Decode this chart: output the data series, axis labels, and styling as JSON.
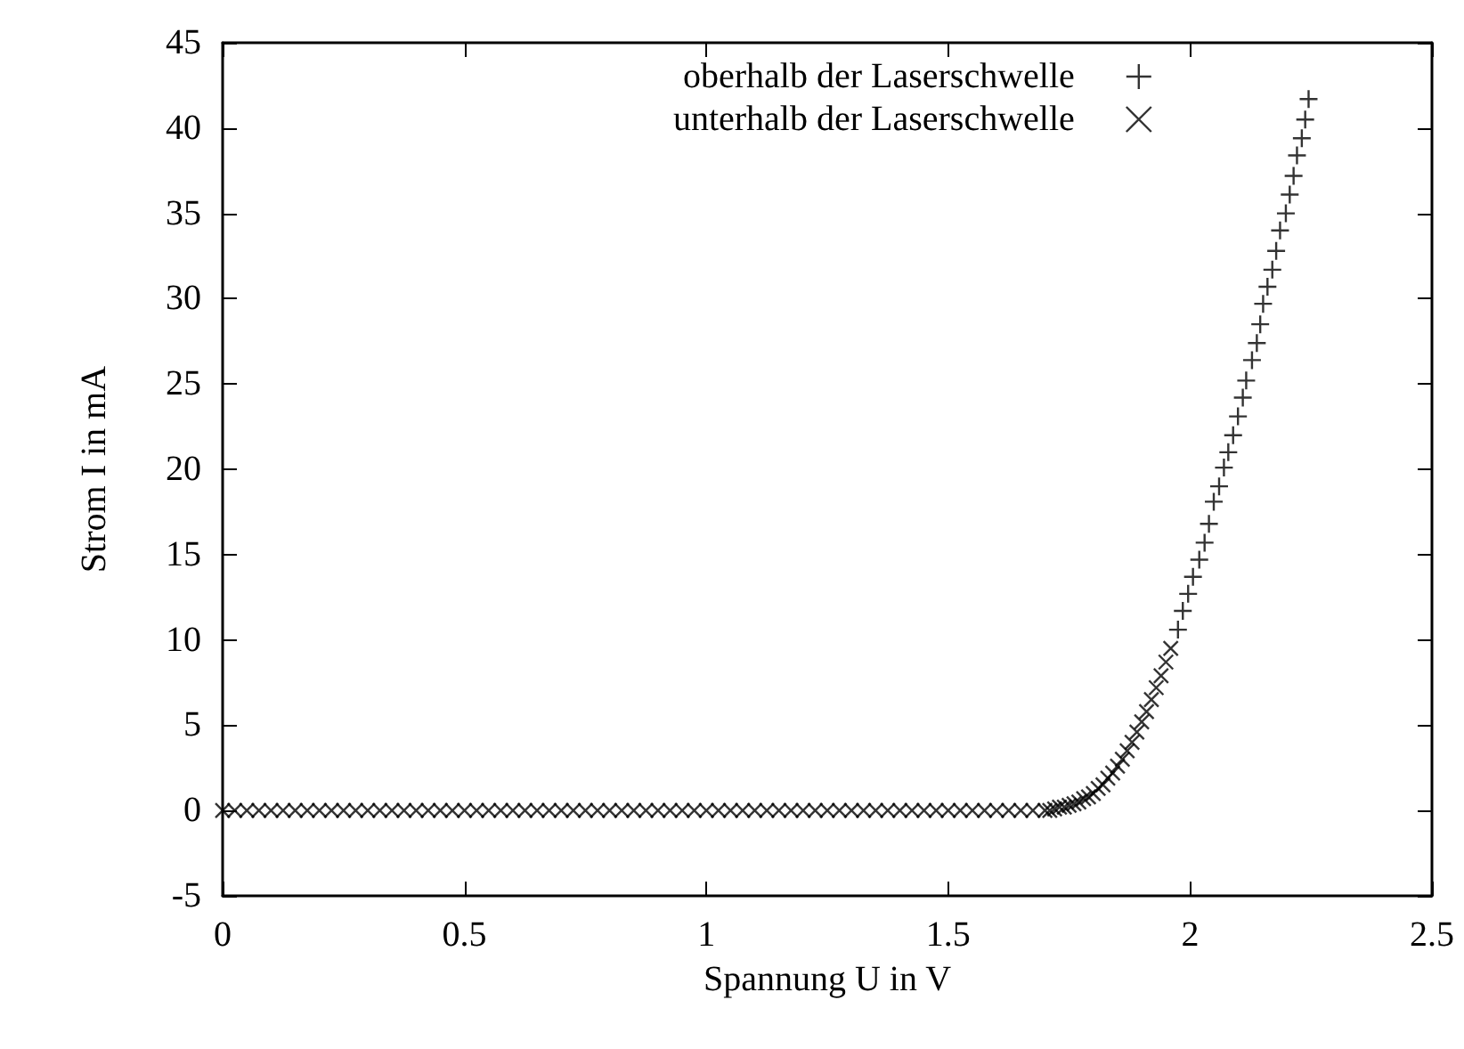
{
  "chart_data": {
    "type": "scatter",
    "xlabel": "Spannung U in V",
    "ylabel": "Strom I in mA",
    "xlim": [
      0,
      2.5
    ],
    "xticks": [
      0,
      0.5,
      1,
      1.5,
      2,
      2.5
    ],
    "ylim": [
      -5,
      45
    ],
    "yticks": [
      -5,
      0,
      5,
      10,
      15,
      20,
      25,
      30,
      35,
      40,
      45
    ],
    "grid": false,
    "legend": "top",
    "series": [
      {
        "name": "oberhalb der Laserschwelle",
        "color": "#000000",
        "marker": "plus",
        "x": [
          1.975,
          1.985,
          1.996,
          2.006,
          2.019,
          2.03,
          2.039,
          2.049,
          2.06,
          2.07,
          2.079,
          2.089,
          2.099,
          2.109,
          2.116,
          2.128,
          2.138,
          2.145,
          2.151,
          2.16,
          2.17,
          2.178,
          2.186,
          2.198,
          2.206,
          2.214,
          2.221,
          2.231,
          2.238,
          2.245
        ],
        "values": [
          10.6,
          11.7,
          12.7,
          13.7,
          14.7,
          15.7,
          16.8,
          18.1,
          19.0,
          20.1,
          21.0,
          22.0,
          23.1,
          24.2,
          25.2,
          26.4,
          27.4,
          28.5,
          29.7,
          30.7,
          31.7,
          32.8,
          34.0,
          35.0,
          36.1,
          37.2,
          38.4,
          39.4,
          40.5,
          41.7
        ]
      },
      {
        "name": "unterhalb der Laserschwelle",
        "color": "#000000",
        "marker": "cross",
        "x": [
          0,
          0.025,
          0.05,
          0.075,
          0.1,
          0.125,
          0.15,
          0.175,
          0.2,
          0.225,
          0.25,
          0.275,
          0.3,
          0.325,
          0.35,
          0.375,
          0.4,
          0.425,
          0.45,
          0.475,
          0.5,
          0.525,
          0.55,
          0.575,
          0.6,
          0.625,
          0.65,
          0.675,
          0.7,
          0.725,
          0.75,
          0.775,
          0.8,
          0.825,
          0.85,
          0.875,
          0.9,
          0.925,
          0.95,
          0.975,
          1,
          1.025,
          1.05,
          1.075,
          1.1,
          1.125,
          1.15,
          1.175,
          1.2,
          1.225,
          1.25,
          1.275,
          1.3,
          1.325,
          1.35,
          1.375,
          1.4,
          1.425,
          1.45,
          1.475,
          1.5,
          1.525,
          1.55,
          1.575,
          1.6,
          1.625,
          1.65,
          1.675,
          1.7,
          1.71,
          1.72,
          1.73,
          1.74,
          1.75,
          1.76,
          1.77,
          1.78,
          1.79,
          1.8,
          1.81,
          1.82,
          1.83,
          1.84,
          1.85,
          1.86,
          1.87,
          1.88,
          1.89,
          1.9,
          1.91,
          1.92,
          1.93,
          1.94,
          1.95,
          1.96
        ],
        "values": [
          0,
          0,
          0,
          0,
          0,
          0,
          0,
          0,
          0,
          0,
          0,
          0,
          0,
          0,
          0,
          0,
          0,
          0,
          0,
          0,
          0,
          0,
          0,
          0,
          0,
          0,
          0,
          0,
          0,
          0,
          0,
          0,
          0,
          0,
          0,
          0,
          0,
          0,
          0,
          0,
          0,
          0,
          0,
          0,
          0,
          0,
          0,
          0,
          0,
          0,
          0,
          0,
          0,
          0,
          0,
          0,
          0,
          0,
          0,
          0,
          0,
          0,
          0,
          0,
          0,
          0,
          0,
          0,
          0,
          0,
          0.1,
          0.2,
          0.2,
          0.3,
          0.4,
          0.5,
          0.7,
          0.8,
          1.0,
          1.3,
          1.5,
          1.9,
          2.2,
          2.6,
          3.0,
          3.5,
          4.0,
          4.6,
          5.2,
          5.8,
          6.5,
          7.2,
          7.9,
          8.7,
          9.5
        ]
      }
    ]
  }
}
